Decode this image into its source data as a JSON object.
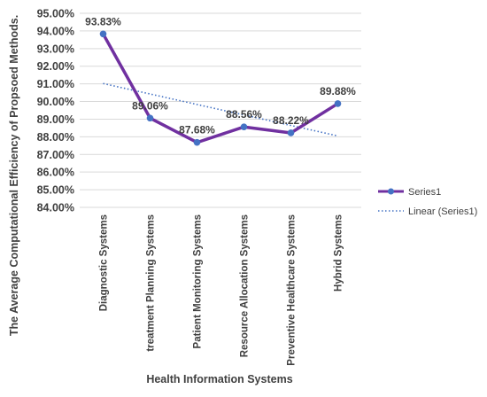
{
  "chart_data": {
    "type": "line",
    "categories": [
      "Diagnostic Systems",
      "treatment Planning Systems",
      "Patient Monitoring Systems",
      "Resource Allocation Systems",
      "Preventive Healthcare Systems",
      "Hybrid Systems"
    ],
    "series": [
      {
        "name": "Series1",
        "values": [
          93.83,
          89.06,
          87.68,
          88.56,
          88.22,
          89.88
        ],
        "data_labels": [
          "93.83%",
          "89.06%",
          "87.68%",
          "88.56%",
          "88.22%",
          "89.88%"
        ],
        "color": "#7030a0",
        "marker_color": "#4472c4"
      },
      {
        "name": "Linear (Series1)",
        "type": "trendline",
        "style": "dotted",
        "color": "#4472c4",
        "values": [
          91.02,
          90.43,
          89.83,
          89.24,
          88.64,
          88.05
        ]
      }
    ],
    "title": "",
    "xlabel": "Health Information Systems",
    "ylabel": "The Average Computational Efficiency of Propsoed Methods.",
    "ylim": [
      84,
      95
    ],
    "ytick_step": 1,
    "ytick_format": "percent-2dp",
    "grid": true,
    "legend_position": "right"
  }
}
